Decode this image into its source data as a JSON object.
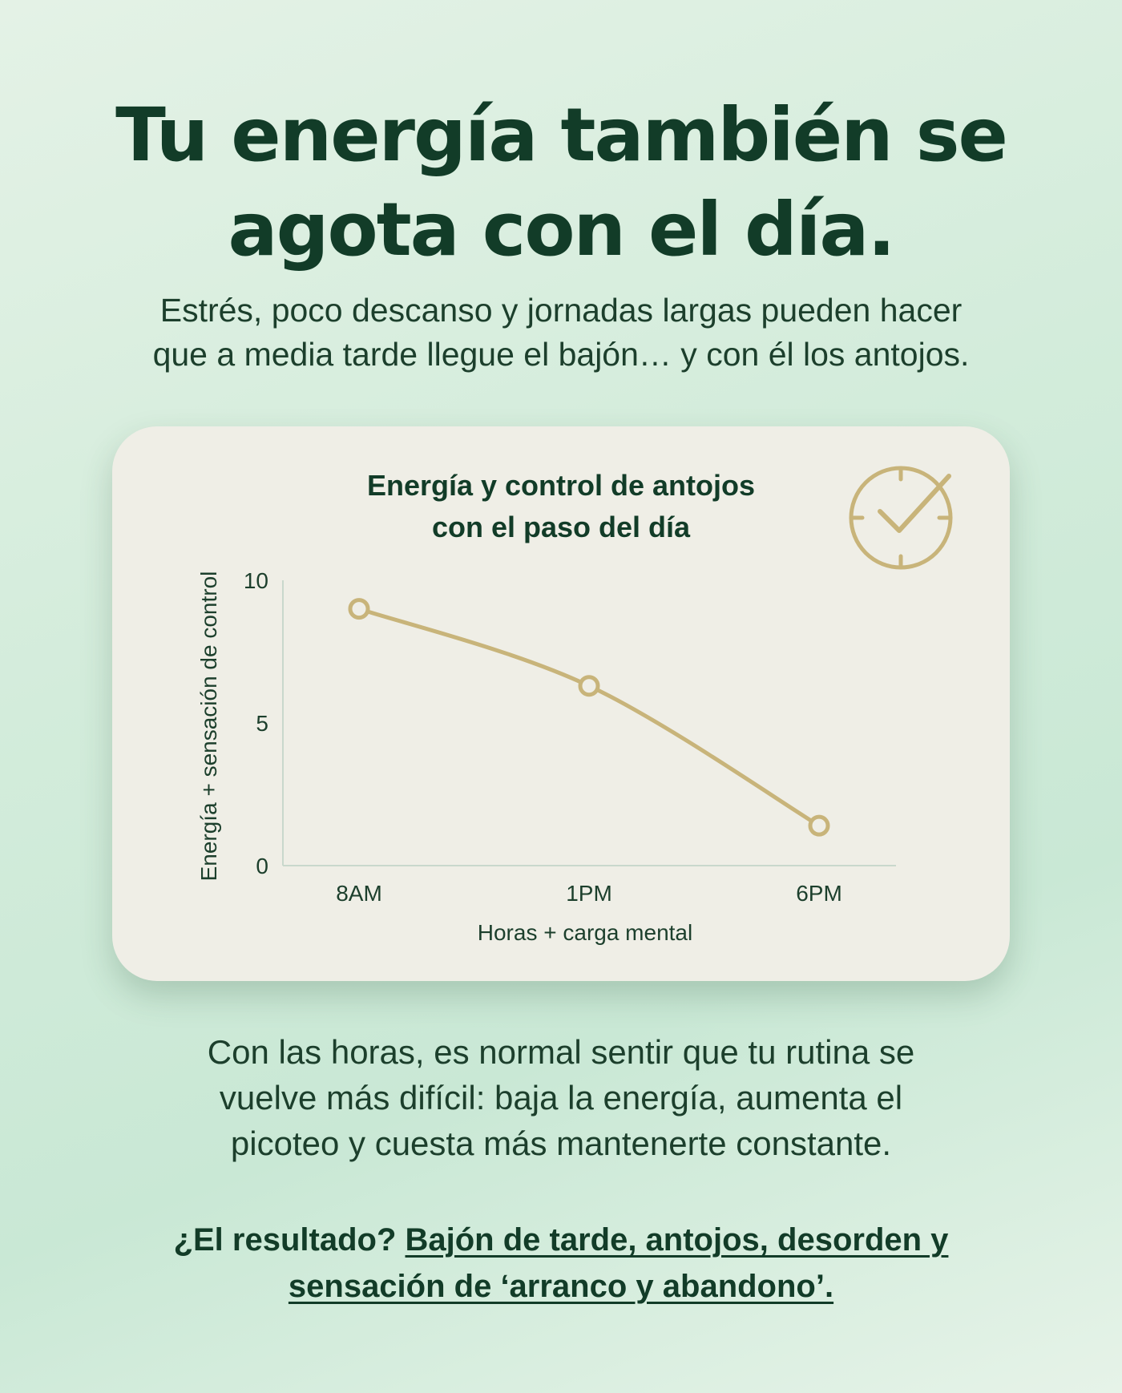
{
  "headline": {
    "line1": "Tu energía también se",
    "line2": "agota con el día."
  },
  "subtitle": {
    "line1": "Estrés, poco descanso y jornadas largas pueden hacer",
    "line2": "que a media tarde llegue el bajón… y con él los antojos."
  },
  "card": {
    "icon": "clock-check-icon"
  },
  "chart_data": {
    "type": "line",
    "title_line1": "Energía y control de antojos",
    "title_line2": "con el paso del día",
    "xlabel": "Horas + carga mental",
    "ylabel": "Energía + sensación de control",
    "categories": [
      "8AM",
      "1PM",
      "6PM"
    ],
    "series": [
      {
        "values": [
          9,
          6.3,
          1.4
        ]
      }
    ],
    "y_ticks": [
      "0",
      "5",
      "10"
    ],
    "ylim": [
      0,
      10
    ],
    "grid": false,
    "line_color": "#c8b47a",
    "axis_color": "#c9d8cc",
    "text_color": "#1c3f2c"
  },
  "body": {
    "line1": "Con las horas, es normal sentir que tu rutina se",
    "line2": "vuelve más difícil: baja la energía, aumenta el",
    "line3": "picoteo y cuesta más mantenerte constante."
  },
  "conclusion": {
    "lead": "¿El resultado? ",
    "highlight1": "Bajón de tarde, antojos, desorden y",
    "highlight2": "sensación de ‘arranco y abandono’."
  }
}
